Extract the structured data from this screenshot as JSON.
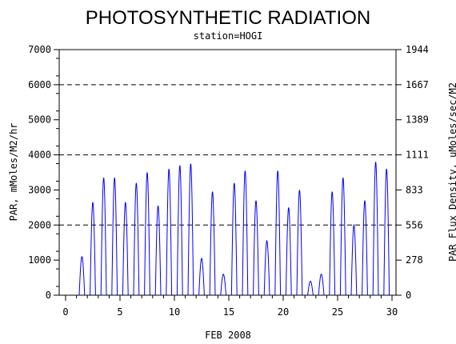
{
  "chart_data": {
    "type": "line",
    "title": "PHOTOSYNTHETIC RADIATION",
    "subtitle": "station=HOGI",
    "xlabel": "FEB 2008",
    "ylabel_left": "PAR, mMoles/M2/hr",
    "ylabel_right": "PAR Flux Density, uMoles/sec/M2",
    "xlim": [
      0,
      30
    ],
    "ylim": [
      0,
      7000
    ],
    "x_ticks": [
      0,
      5,
      10,
      15,
      20,
      25,
      30
    ],
    "y_ticks_left": [
      0,
      1000,
      2000,
      3000,
      4000,
      5000,
      6000,
      7000
    ],
    "y_ticks_right": [
      "0",
      "278",
      "556",
      "833",
      "1111",
      "1389",
      "1667",
      "1944"
    ],
    "reference_lines": [
      2000,
      4000,
      6000
    ],
    "grid": false,
    "line_color": "#0000ff",
    "series": [
      {
        "daily_peaks": [
          {
            "day": 1,
            "peak": 1100
          },
          {
            "day": 2,
            "peak": 2650
          },
          {
            "day": 3,
            "peak": 3350
          },
          {
            "day": 4,
            "peak": 3350
          },
          {
            "day": 5,
            "peak": 2650
          },
          {
            "day": 6,
            "peak": 3200
          },
          {
            "day": 7,
            "peak": 3500
          },
          {
            "day": 8,
            "peak": 2550
          },
          {
            "day": 9,
            "peak": 3600
          },
          {
            "day": 10,
            "peak": 3700
          },
          {
            "day": 11,
            "peak": 3750
          },
          {
            "day": 12,
            "peak": 1050
          },
          {
            "day": 13,
            "peak": 2950
          },
          {
            "day": 14,
            "peak": 600
          },
          {
            "day": 15,
            "peak": 3200
          },
          {
            "day": 16,
            "peak": 3550
          },
          {
            "day": 17,
            "peak": 2700
          },
          {
            "day": 18,
            "peak": 1550
          },
          {
            "day": 19,
            "peak": 3550
          },
          {
            "day": 20,
            "peak": 2500
          },
          {
            "day": 21,
            "peak": 3000
          },
          {
            "day": 22,
            "peak": 400
          },
          {
            "day": 23,
            "peak": 600
          },
          {
            "day": 24,
            "peak": 2950
          },
          {
            "day": 25,
            "peak": 3350
          },
          {
            "day": 26,
            "peak": 2000
          },
          {
            "day": 27,
            "peak": 2700
          },
          {
            "day": 28,
            "peak": 3800
          },
          {
            "day": 29,
            "peak": 3600
          }
        ]
      }
    ]
  }
}
